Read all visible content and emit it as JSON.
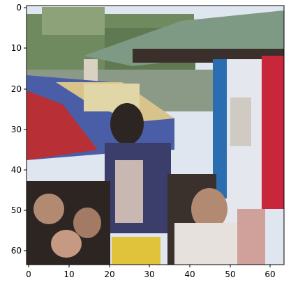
{
  "image": {
    "description_icon": "pixelated-photo-crowd-market-stall",
    "pixel_grid": {
      "cols": 64,
      "rows": 64
    },
    "palette": {
      "sky": "#dfe6ef",
      "trees": "#6f8a5f",
      "roof": "#7e9a84",
      "roof_dark": "#3a2f2a",
      "umbrella_blue": "#4a5ea8",
      "umbrella_red": "#b83035",
      "umbrella_yellow": "#d8c48a",
      "pillar_blue": "#2a6db0",
      "pillar_white": "#e4e8ee",
      "banner_red": "#c8263a",
      "crowd_dark": "#2d2522",
      "skin": "#b28a72",
      "shirt_navy": "#3b3d6b",
      "yellow_item": "#e0c33a",
      "white_shirt": "#e6e1dc"
    }
  },
  "axes": {
    "x_ticks": [
      "0",
      "10",
      "20",
      "30",
      "40",
      "50",
      "60"
    ],
    "y_ticks": [
      "0",
      "10",
      "20",
      "30",
      "40",
      "50",
      "60"
    ]
  }
}
